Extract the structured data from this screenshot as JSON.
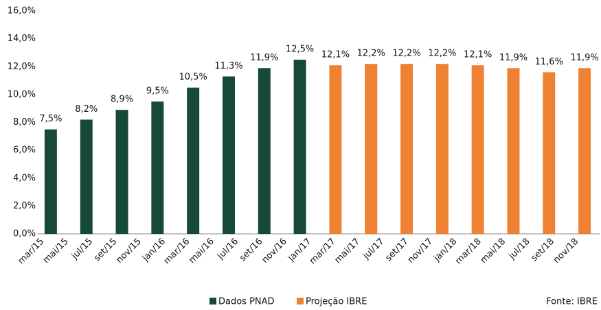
{
  "chart_data": {
    "type": "bar",
    "xtick_labels": [
      "mar/15",
      "mai/15",
      "jul/15",
      "set/15",
      "nov/15",
      "jan/16",
      "mar/16",
      "mai/16",
      "jul/16",
      "set/16",
      "nov/16",
      "jan/17",
      "mar/17",
      "mai/17",
      "jul/17",
      "set/17",
      "nov/17",
      "jan/18",
      "mar/18",
      "mai/18",
      "jul/18",
      "set/18",
      "nov/18"
    ],
    "series": [
      {
        "name": "Dados PNAD",
        "color": "#174a36",
        "values": [
          7.5,
          8.2,
          8.9,
          9.5,
          10.5,
          11.3,
          11.9,
          12.5,
          null,
          null,
          null,
          null,
          null,
          null,
          null,
          null
        ],
        "value_labels": [
          "7,5%",
          "8,2%",
          "8,9%",
          "9,5%",
          "10,5%",
          "11,3%",
          "11,9%",
          "12,5%",
          null,
          null,
          null,
          null,
          null,
          null,
          null,
          null
        ]
      },
      {
        "name": "Projeção IBRE",
        "color": "#ee8232",
        "values": [
          null,
          null,
          null,
          null,
          null,
          null,
          null,
          null,
          12.1,
          12.2,
          12.2,
          12.2,
          12.1,
          11.9,
          11.6,
          11.9
        ],
        "value_labels": [
          null,
          null,
          null,
          null,
          null,
          null,
          null,
          null,
          "12,1%",
          "12,2%",
          "12,2%",
          "12,2%",
          "12,1%",
          "11,9%",
          "11,6%",
          "11,9%"
        ]
      }
    ],
    "ylim": [
      0,
      16
    ],
    "yticks": [
      {
        "value": 0,
        "label": "0,0%"
      },
      {
        "value": 2,
        "label": "2,0%"
      },
      {
        "value": 4,
        "label": "4,0%"
      },
      {
        "value": 6,
        "label": "6,0%"
      },
      {
        "value": 8,
        "label": "8,0%"
      },
      {
        "value": 10,
        "label": "10,0%"
      },
      {
        "value": 12,
        "label": "12,0%"
      },
      {
        "value": 14,
        "label": "14,0%"
      },
      {
        "value": 16,
        "label": "16,0%"
      }
    ],
    "grid": false,
    "legend": "bottom",
    "source": "Fonte: IBRE"
  }
}
